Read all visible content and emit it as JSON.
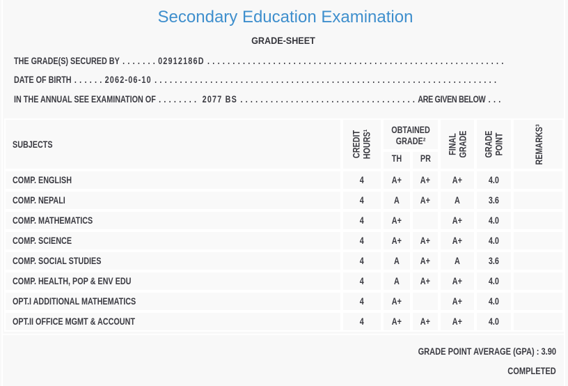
{
  "page": {
    "title": "Secondary Education Examination",
    "subtitle": "GRADE-SHEET",
    "accent_color": "#3f8fcd",
    "text_color": "#3a3a41",
    "background_color": "#f8f8f8"
  },
  "info_lines": {
    "grades_secured": {
      "label": "THE GRADE(S) SECURED BY",
      "leader1": " . . . . . . . ",
      "value": "02912186D",
      "leader2": " . . . . . . . . . . . . . . . . . . . . . . . . . . . . . . . . . . . . . . . . . . . . . . . . . . . . . . . . . . .",
      "suffix": "",
      "leader3": ""
    },
    "date_of_birth": {
      "label": "DATE OF BIRTH",
      "leader1": " . . . . . . ",
      "value": "2062-06-10",
      "leader2": " . . . . . . . . . . . . . . . . . . . . . . . . . . . . . . . . . . . . . . . . . . . . . . . . . . . . . . . . . . . . . . . . . . . .",
      "suffix": "",
      "leader3": ""
    },
    "examination": {
      "label": "IN THE ANNUAL SEE EXAMINATION OF",
      "leader1": " . . . . . . . .  ",
      "value": "2077 BS",
      "leader2": " . . . . . . . . . . . . . . . . . . . . . . . . . . . . . . . . . . . ",
      "suffix": "ARE GIVEN BELOW",
      "leader3": " . . ."
    }
  },
  "table": {
    "header": {
      "subjects": "SUBJECTS",
      "credit_hours": {
        "line1": "CREDIT",
        "line2": "HOURS¹"
      },
      "obtained_grade": {
        "line1": "OBTAINED",
        "line2": "GRADE²"
      },
      "th": "TH",
      "pr": "PR",
      "final_grade": {
        "line1": "FINAL",
        "line2": "GRADE"
      },
      "grade_point": {
        "line1": "GRADE",
        "line2": "POINT"
      },
      "remarks": "REMARKS³"
    },
    "rows": [
      {
        "subject": "COMP. ENGLISH",
        "credit_hours": "4",
        "th_grade": "A+",
        "pr_grade": "A+",
        "final_grade": "A+",
        "grade_point": "4.0",
        "remarks": ""
      },
      {
        "subject": "COMP. NEPALI",
        "credit_hours": "4",
        "th_grade": "A",
        "pr_grade": "A+",
        "final_grade": "A",
        "grade_point": "3.6",
        "remarks": ""
      },
      {
        "subject": "COMP. MATHEMATICS",
        "credit_hours": "4",
        "th_grade": "A+",
        "pr_grade": "",
        "final_grade": "A+",
        "grade_point": "4.0",
        "remarks": ""
      },
      {
        "subject": "COMP. SCIENCE",
        "credit_hours": "4",
        "th_grade": "A+",
        "pr_grade": "A+",
        "final_grade": "A+",
        "grade_point": "4.0",
        "remarks": ""
      },
      {
        "subject": "COMP. SOCIAL STUDIES",
        "credit_hours": "4",
        "th_grade": "A",
        "pr_grade": "A+",
        "final_grade": "A",
        "grade_point": "3.6",
        "remarks": ""
      },
      {
        "subject": "COMP. HEALTH, POP & ENV EDU",
        "credit_hours": "4",
        "th_grade": "A",
        "pr_grade": "A+",
        "final_grade": "A+",
        "grade_point": "4.0",
        "remarks": ""
      },
      {
        "subject": "OPT.I ADDITIONAL MATHEMATICS",
        "credit_hours": "4",
        "th_grade": "A+",
        "pr_grade": "",
        "final_grade": "A+",
        "grade_point": "4.0",
        "remarks": ""
      },
      {
        "subject": "OPT.II OFFICE MGMT & ACCOUNT",
        "credit_hours": "4",
        "th_grade": "A+",
        "pr_grade": "A+",
        "final_grade": "A+",
        "grade_point": "4.0",
        "remarks": ""
      }
    ]
  },
  "footer": {
    "gpa_label": "GRADE POINT AVERAGE (GPA)",
    "gpa_separator": " : ",
    "gpa_value": "3.90",
    "status": "COMPLETED"
  }
}
